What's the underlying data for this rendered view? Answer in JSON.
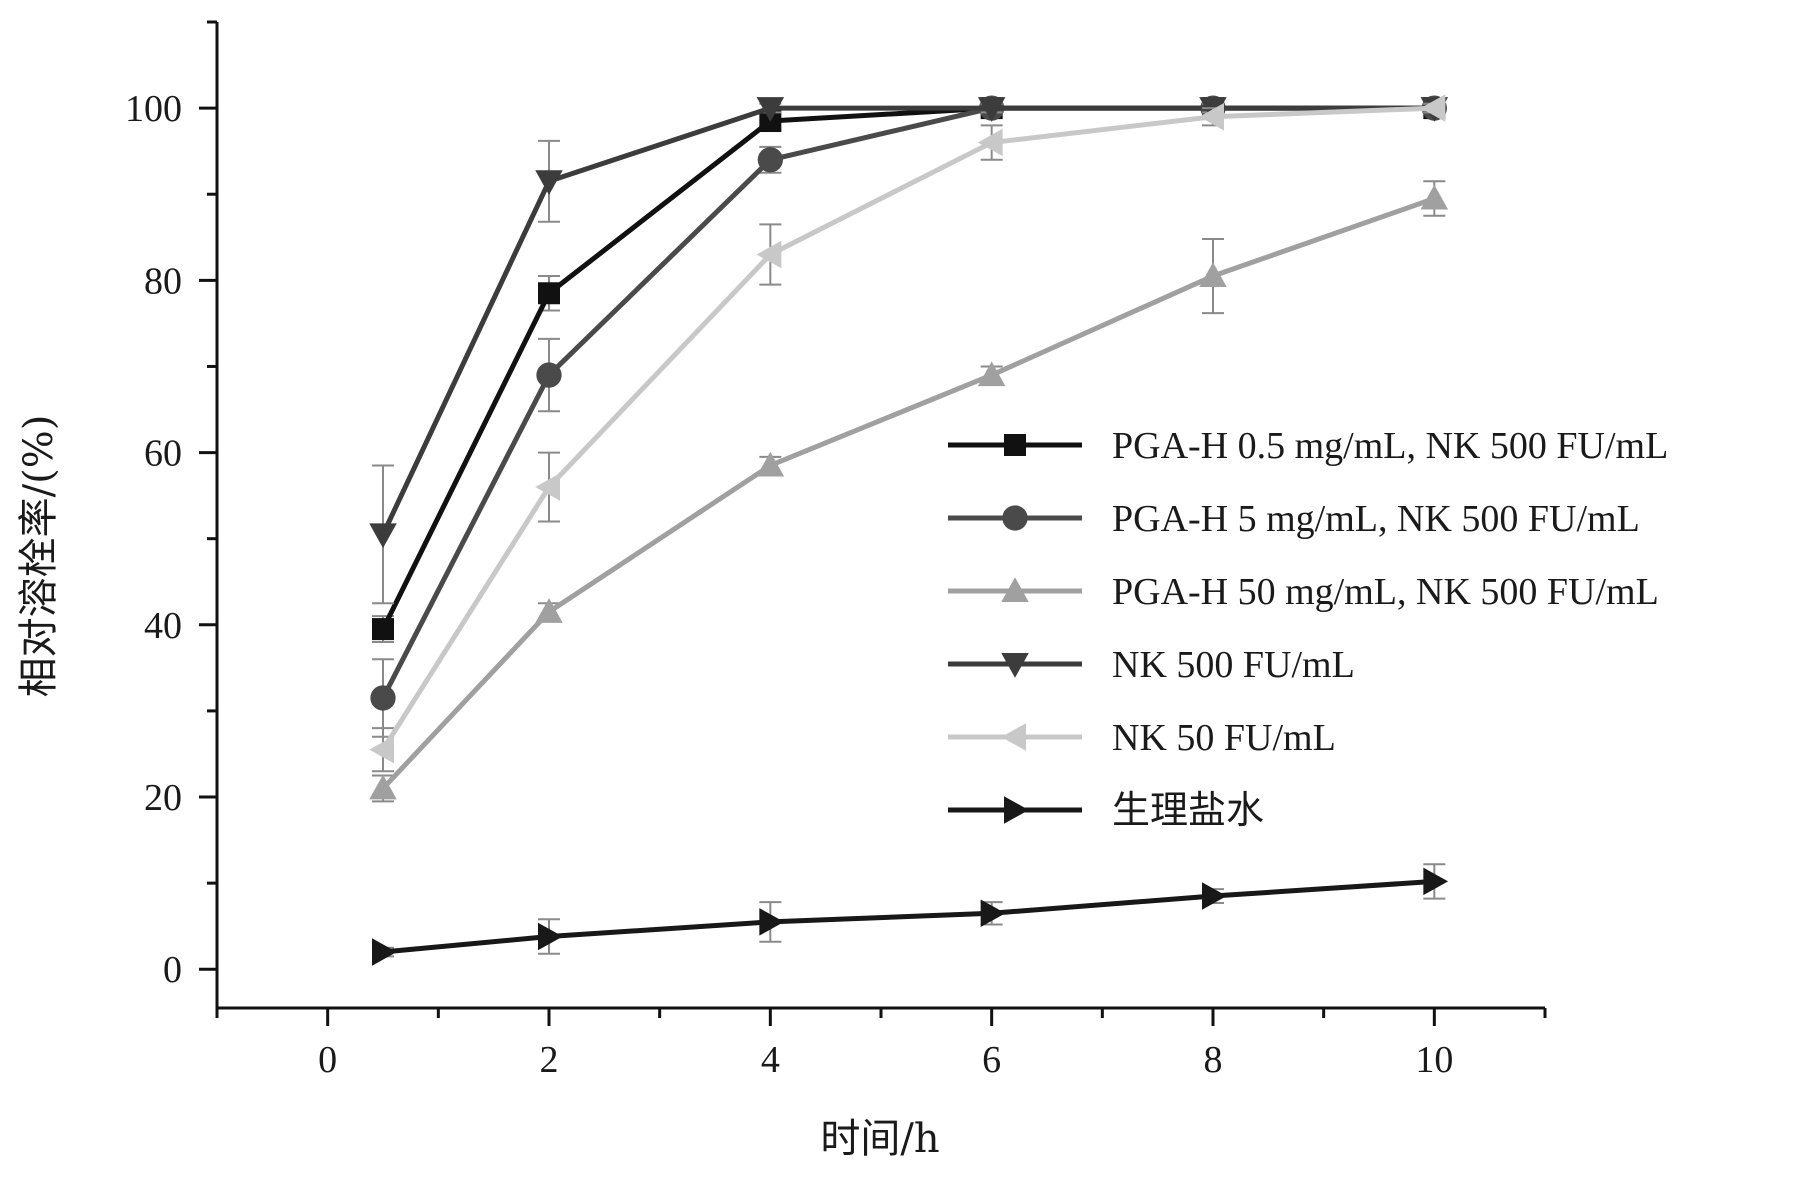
{
  "chart_data": {
    "type": "line",
    "title": "",
    "xlabel": "时间/h",
    "ylabel": "相对溶栓率/(%)",
    "xlim": [
      -1,
      11
    ],
    "ylim": [
      -4.5,
      110
    ],
    "x_ticks": [
      0,
      2,
      4,
      6,
      8,
      10
    ],
    "x_tick_labels": [
      "0",
      "2",
      "4",
      "6",
      "8",
      "10"
    ],
    "y_ticks": [
      0,
      20,
      40,
      60,
      80,
      100
    ],
    "y_tick_labels": [
      "0",
      "20",
      "40",
      "60",
      "80",
      "100"
    ],
    "grid": false,
    "legend_position": "center-right",
    "x": [
      0.5,
      2,
      4,
      6,
      8,
      10
    ],
    "series": [
      {
        "name": "PGA-H 0.5 mg/mL, NK 500 FU/mL",
        "marker": "square",
        "color": "#111111",
        "values": [
          39.5,
          78.5,
          98.5,
          100,
          100,
          100
        ],
        "errors": [
          1.5,
          2,
          1,
          0.5,
          0.5,
          0.5
        ]
      },
      {
        "name": "PGA-H 5 mg/mL, NK 500 FU/mL",
        "marker": "circle",
        "color": "#4a4a4a",
        "values": [
          31.5,
          69,
          94,
          100,
          100,
          100
        ],
        "errors": [
          4.5,
          4.2,
          1.5,
          0.5,
          0.5,
          0.5
        ]
      },
      {
        "name": "PGA-H 50 mg/mL, NK 500 FU/mL",
        "marker": "triangle-up",
        "color": "#a0a0a0",
        "values": [
          21,
          41.5,
          58.5,
          69,
          80.5,
          89.5
        ],
        "errors": [
          1.5,
          1,
          1,
          1,
          4.3,
          2
        ]
      },
      {
        "name": "NK 500 FU/mL",
        "marker": "triangle-down",
        "color": "#3c3c3c",
        "values": [
          50.5,
          91.5,
          100,
          100,
          100,
          100
        ],
        "errors": [
          8,
          4.7,
          0.5,
          0.5,
          0.5,
          0.5
        ]
      },
      {
        "name": "NK 50 FU/mL",
        "marker": "triangle-left",
        "color": "#c8c8c8",
        "values": [
          25.5,
          56,
          83,
          96,
          99,
          100
        ],
        "errors": [
          2.5,
          4,
          3.5,
          2,
          1,
          0.5
        ]
      },
      {
        "name": "生理盐水",
        "marker": "triangle-right",
        "color": "#181818",
        "values": [
          2,
          3.8,
          5.5,
          6.5,
          8.5,
          10.2
        ],
        "errors": [
          0.5,
          2,
          2.3,
          1.3,
          0.8,
          2
        ]
      }
    ]
  }
}
